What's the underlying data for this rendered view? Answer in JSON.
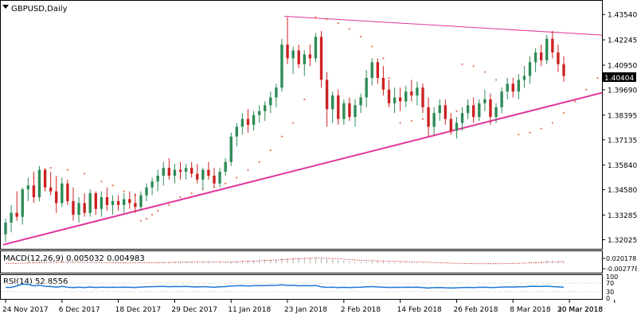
{
  "symbol_title": "GBPUSD,Daily",
  "price_label": "1.40404",
  "colors": {
    "bull": "#2e8b57",
    "bear": "#cc2222",
    "trendline": "#e0359a",
    "sar": "#e07050",
    "macd": "#b0b0b0",
    "signal": "#cc2222",
    "rsi": "#1e78dc",
    "grid": "#d8d8d8",
    "axis": "#000000"
  },
  "chart_data": [
    {
      "type": "candlestick",
      "title": "GBPUSD,Daily",
      "ylim": [
        1.316,
        1.442
      ],
      "y_ticks": [
        "1.43540",
        "1.42245",
        "1.40950",
        "1.39690",
        "1.38395",
        "1.37135",
        "1.35840",
        "1.34580",
        "1.33285",
        "1.32025"
      ],
      "x_tick_labels": [
        "24 Nov 2017",
        "6 Dec 2017",
        "18 Dec 2017",
        "29 Dec 2017",
        "11 Jan 2018",
        "23 Jan 2018",
        "2 Feb 2018",
        "14 Feb 2018",
        "26 Feb 2018",
        "8 Mar 2018",
        "20 Mar 2018",
        "30 Mar 2018"
      ],
      "x_tick_index": [
        0,
        10,
        20,
        30,
        40,
        50,
        60,
        70,
        80,
        90,
        100,
        108
      ],
      "current_price": 1.40404,
      "candles": [
        [
          1.323,
          1.331,
          1.319,
          1.329
        ],
        [
          1.329,
          1.338,
          1.324,
          1.334
        ],
        [
          1.334,
          1.345,
          1.33,
          1.332
        ],
        [
          1.332,
          1.347,
          1.328,
          1.346
        ],
        [
          1.346,
          1.352,
          1.34,
          1.348
        ],
        [
          1.348,
          1.355,
          1.339,
          1.342
        ],
        [
          1.342,
          1.358,
          1.34,
          1.356
        ],
        [
          1.356,
          1.357,
          1.345,
          1.347
        ],
        [
          1.347,
          1.355,
          1.343,
          1.345
        ],
        [
          1.345,
          1.353,
          1.334,
          1.339
        ],
        [
          1.339,
          1.352,
          1.337,
          1.349
        ],
        [
          1.349,
          1.351,
          1.338,
          1.34
        ],
        [
          1.34,
          1.347,
          1.33,
          1.333
        ],
        [
          1.333,
          1.342,
          1.329,
          1.339
        ],
        [
          1.339,
          1.344,
          1.332,
          1.334
        ],
        [
          1.334,
          1.346,
          1.332,
          1.344
        ],
        [
          1.344,
          1.345,
          1.333,
          1.336
        ],
        [
          1.336,
          1.345,
          1.332,
          1.342
        ],
        [
          1.342,
          1.347,
          1.335,
          1.338
        ],
        [
          1.338,
          1.343,
          1.333,
          1.34
        ],
        [
          1.34,
          1.343,
          1.335,
          1.338
        ],
        [
          1.338,
          1.344,
          1.334,
          1.341
        ],
        [
          1.341,
          1.345,
          1.336,
          1.339
        ],
        [
          1.339,
          1.344,
          1.334,
          1.337
        ],
        [
          1.337,
          1.345,
          1.335,
          1.343
        ],
        [
          1.343,
          1.349,
          1.34,
          1.347
        ],
        [
          1.347,
          1.352,
          1.343,
          1.35
        ],
        [
          1.35,
          1.356,
          1.345,
          1.353
        ],
        [
          1.353,
          1.36,
          1.348,
          1.357
        ],
        [
          1.357,
          1.362,
          1.351,
          1.353
        ],
        [
          1.353,
          1.359,
          1.349,
          1.356
        ],
        [
          1.356,
          1.36,
          1.351,
          1.355
        ],
        [
          1.355,
          1.359,
          1.351,
          1.357
        ],
        [
          1.357,
          1.36,
          1.352,
          1.354
        ],
        [
          1.354,
          1.359,
          1.349,
          1.351
        ],
        [
          1.351,
          1.357,
          1.346,
          1.356
        ],
        [
          1.356,
          1.36,
          1.351,
          1.353
        ],
        [
          1.353,
          1.357,
          1.347,
          1.349
        ],
        [
          1.349,
          1.357,
          1.347,
          1.355
        ],
        [
          1.355,
          1.362,
          1.353,
          1.36
        ],
        [
          1.36,
          1.375,
          1.358,
          1.373
        ],
        [
          1.373,
          1.38,
          1.368,
          1.378
        ],
        [
          1.378,
          1.385,
          1.374,
          1.382
        ],
        [
          1.382,
          1.387,
          1.375,
          1.379
        ],
        [
          1.379,
          1.386,
          1.376,
          1.384
        ],
        [
          1.384,
          1.389,
          1.38,
          1.386
        ],
        [
          1.386,
          1.391,
          1.381,
          1.389
        ],
        [
          1.389,
          1.396,
          1.385,
          1.393
        ],
        [
          1.393,
          1.4,
          1.388,
          1.398
        ],
        [
          1.398,
          1.423,
          1.396,
          1.42
        ],
        [
          1.42,
          1.434,
          1.41,
          1.413
        ],
        [
          1.413,
          1.419,
          1.405,
          1.417
        ],
        [
          1.417,
          1.42,
          1.408,
          1.41
        ],
        [
          1.41,
          1.417,
          1.404,
          1.415
        ],
        [
          1.415,
          1.42,
          1.409,
          1.413
        ],
        [
          1.413,
          1.426,
          1.411,
          1.424
        ],
        [
          1.424,
          1.427,
          1.398,
          1.402
        ],
        [
          1.402,
          1.406,
          1.378,
          1.387
        ],
        [
          1.387,
          1.396,
          1.38,
          1.394
        ],
        [
          1.394,
          1.397,
          1.379,
          1.382
        ],
        [
          1.382,
          1.392,
          1.379,
          1.39
        ],
        [
          1.39,
          1.393,
          1.381,
          1.383
        ],
        [
          1.383,
          1.392,
          1.378,
          1.389
        ],
        [
          1.389,
          1.395,
          1.385,
          1.393
        ],
        [
          1.393,
          1.407,
          1.388,
          1.403
        ],
        [
          1.403,
          1.413,
          1.399,
          1.411
        ],
        [
          1.411,
          1.413,
          1.4,
          1.403
        ],
        [
          1.403,
          1.409,
          1.394,
          1.397
        ],
        [
          1.397,
          1.402,
          1.388,
          1.39
        ],
        [
          1.39,
          1.398,
          1.385,
          1.393
        ],
        [
          1.393,
          1.398,
          1.386,
          1.391
        ],
        [
          1.391,
          1.399,
          1.388,
          1.396
        ],
        [
          1.396,
          1.402,
          1.391,
          1.394
        ],
        [
          1.394,
          1.401,
          1.389,
          1.398
        ],
        [
          1.398,
          1.4,
          1.385,
          1.388
        ],
        [
          1.388,
          1.393,
          1.373,
          1.378
        ],
        [
          1.378,
          1.388,
          1.374,
          1.385
        ],
        [
          1.385,
          1.392,
          1.381,
          1.389
        ],
        [
          1.389,
          1.392,
          1.379,
          1.382
        ],
        [
          1.382,
          1.385,
          1.374,
          1.376
        ],
        [
          1.376,
          1.383,
          1.372,
          1.38
        ],
        [
          1.38,
          1.388,
          1.376,
          1.385
        ],
        [
          1.385,
          1.392,
          1.382,
          1.389
        ],
        [
          1.389,
          1.393,
          1.38,
          1.383
        ],
        [
          1.383,
          1.392,
          1.381,
          1.39
        ],
        [
          1.39,
          1.397,
          1.386,
          1.392
        ],
        [
          1.392,
          1.395,
          1.379,
          1.383
        ],
        [
          1.383,
          1.39,
          1.38,
          1.388
        ],
        [
          1.388,
          1.398,
          1.385,
          1.396
        ],
        [
          1.396,
          1.403,
          1.392,
          1.4
        ],
        [
          1.4,
          1.403,
          1.393,
          1.396
        ],
        [
          1.396,
          1.405,
          1.392,
          1.402
        ],
        [
          1.402,
          1.409,
          1.398,
          1.404
        ],
        [
          1.404,
          1.414,
          1.4,
          1.411
        ],
        [
          1.411,
          1.418,
          1.406,
          1.416
        ],
        [
          1.416,
          1.42,
          1.409,
          1.412
        ],
        [
          1.412,
          1.425,
          1.41,
          1.423
        ],
        [
          1.423,
          1.427,
          1.413,
          1.416
        ],
        [
          1.416,
          1.42,
          1.406,
          1.41
        ],
        [
          1.41,
          1.414,
          1.401,
          1.404
        ]
      ],
      "overlays": {
        "upper_trendline": [
          [
            50,
            1.4345
          ],
          [
            108,
            1.4245
          ]
        ],
        "lower_trendline": [
          [
            0,
            1.318
          ],
          [
            108,
            1.397
          ]
        ],
        "parabolic_sar": [
          [
            5,
            1.352
          ],
          [
            8,
            1.357
          ],
          [
            11,
            1.356
          ],
          [
            14,
            1.354
          ],
          [
            17,
            1.35
          ],
          [
            19,
            1.348
          ],
          [
            21,
            1.345
          ],
          [
            23,
            1.343
          ],
          [
            24,
            1.33
          ],
          [
            25,
            1.331
          ],
          [
            26,
            1.333
          ],
          [
            27,
            1.335
          ],
          [
            29,
            1.338
          ],
          [
            31,
            1.342
          ],
          [
            33,
            1.344
          ],
          [
            35,
            1.346
          ],
          [
            37,
            1.347
          ],
          [
            39,
            1.349
          ],
          [
            41,
            1.352
          ],
          [
            43,
            1.356
          ],
          [
            45,
            1.36
          ],
          [
            47,
            1.366
          ],
          [
            49,
            1.373
          ],
          [
            51,
            1.38
          ],
          [
            53,
            1.392
          ],
          [
            55,
            1.434
          ],
          [
            57,
            1.433
          ],
          [
            59,
            1.431
          ],
          [
            61,
            1.428
          ],
          [
            63,
            1.424
          ],
          [
            65,
            1.419
          ],
          [
            67,
            1.413
          ],
          [
            68,
            1.403
          ],
          [
            70,
            1.38
          ],
          [
            72,
            1.381
          ],
          [
            74,
            1.382
          ],
          [
            76,
            1.383
          ],
          [
            78,
            1.385
          ],
          [
            80,
            1.386
          ],
          [
            81,
            1.41
          ],
          [
            83,
            1.409
          ],
          [
            85,
            1.406
          ],
          [
            87,
            1.402
          ],
          [
            89,
            1.398
          ],
          [
            91,
            1.374
          ],
          [
            93,
            1.375
          ],
          [
            95,
            1.377
          ],
          [
            97,
            1.38
          ],
          [
            99,
            1.385
          ],
          [
            101,
            1.391
          ],
          [
            103,
            1.397
          ],
          [
            105,
            1.403
          ]
        ]
      }
    },
    {
      "type": "histogram",
      "indicator": "MACD(12,26,9)",
      "label": "MACD(12,26,9) 0.005032 0.004983",
      "y_ticks": [
        "0.020178",
        "-0.002778"
      ]
    },
    {
      "type": "line",
      "indicator": "RSI(14)",
      "label": "RSI(14) 52.8556",
      "y_ticks": [
        "100",
        "70",
        "30",
        "0"
      ]
    }
  ]
}
